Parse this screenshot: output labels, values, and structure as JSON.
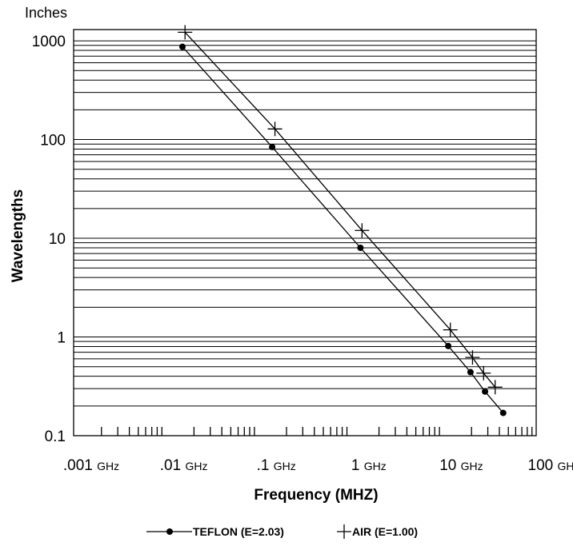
{
  "chart_data": {
    "type": "line",
    "title": "",
    "ylabel": "Wavelengths",
    "yunit_label": "Inches",
    "xlabel": "Frequency (MHZ)",
    "x_scale": "log",
    "y_scale": "log",
    "xlim": [
      0.001,
      100
    ],
    "ylim": [
      0.1,
      1300
    ],
    "x_unit": "GHz",
    "y_ticks": [
      {
        "value": 1000,
        "label": "1000"
      },
      {
        "value": 100,
        "label": "100"
      },
      {
        "value": 10,
        "label": "10"
      },
      {
        "value": 1,
        "label": "1"
      },
      {
        "value": 0.1,
        "label": "0.1"
      }
    ],
    "x_ticks": [
      {
        "value": 0.001,
        "num": ".001",
        "unit": "GHz"
      },
      {
        "value": 0.01,
        "num": ".01",
        "unit": "GHz"
      },
      {
        "value": 0.1,
        "num": ".1",
        "unit": "GHz"
      },
      {
        "value": 1,
        "num": "1",
        "unit": "GHz"
      },
      {
        "value": 10,
        "num": "10",
        "unit": "GHz"
      },
      {
        "value": 100,
        "num": "100",
        "unit": "GHz"
      }
    ],
    "grid": true,
    "legend_position": "bottom",
    "series": [
      {
        "name": "TEFLON (E=2.03)",
        "marker": "dot",
        "points": [
          {
            "x": 0.015,
            "y": 870
          },
          {
            "x": 0.14,
            "y": 84
          },
          {
            "x": 1.26,
            "y": 8
          },
          {
            "x": 11.2,
            "y": 0.81
          },
          {
            "x": 19.5,
            "y": 0.44
          },
          {
            "x": 28,
            "y": 0.28
          },
          {
            "x": 44,
            "y": 0.17
          }
        ]
      },
      {
        "name": "AIR (E=1.00)",
        "marker": "plus",
        "points": [
          {
            "x": 0.016,
            "y": 1220
          },
          {
            "x": 0.15,
            "y": 128
          },
          {
            "x": 1.31,
            "y": 12
          },
          {
            "x": 11.8,
            "y": 1.18
          },
          {
            "x": 20.5,
            "y": 0.62
          },
          {
            "x": 27,
            "y": 0.43
          },
          {
            "x": 36,
            "y": 0.31
          }
        ]
      }
    ]
  }
}
